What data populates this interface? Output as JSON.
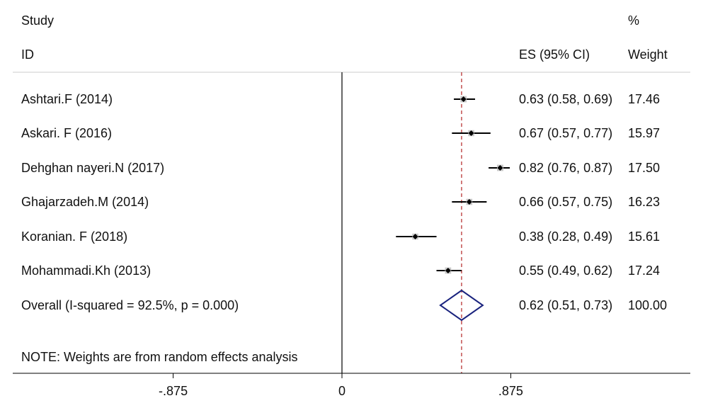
{
  "header": {
    "study_label": "Study",
    "id_label": "ID",
    "es_label": "ES (95% CI)",
    "pct_label": "%",
    "weight_label": "Weight"
  },
  "note": "NOTE: Weights are from random effects analysis",
  "chart_data": {
    "type": "forest",
    "x_ticks": [
      {
        "value": -0.875,
        "label": "-.875"
      },
      {
        "value": 0,
        "label": "0"
      },
      {
        "value": 0.875,
        "label": ".875"
      }
    ],
    "xlim": [
      -1.75,
      1.75
    ],
    "null_line": 0,
    "overall_line": 0.62,
    "studies": [
      {
        "label": "Ashtari.F (2014)",
        "es": 0.63,
        "lo": 0.58,
        "hi": 0.69,
        "es_text": "0.63 (0.58, 0.69)",
        "weight": "17.46"
      },
      {
        "label": "Askari. F (2016)",
        "es": 0.67,
        "lo": 0.57,
        "hi": 0.77,
        "es_text": "0.67 (0.57, 0.77)",
        "weight": "15.97"
      },
      {
        "label": "Dehghan nayeri.N (2017)",
        "es": 0.82,
        "lo": 0.76,
        "hi": 0.87,
        "es_text": "0.82 (0.76, 0.87)",
        "weight": "17.50"
      },
      {
        "label": "Ghajarzadeh.M (2014)",
        "es": 0.66,
        "lo": 0.57,
        "hi": 0.75,
        "es_text": "0.66 (0.57, 0.75)",
        "weight": "16.23"
      },
      {
        "label": "Koranian. F (2018)",
        "es": 0.38,
        "lo": 0.28,
        "hi": 0.49,
        "es_text": "0.38 (0.28, 0.49)",
        "weight": "15.61"
      },
      {
        "label": "Mohammadi.Kh (2013)",
        "es": 0.55,
        "lo": 0.49,
        "hi": 0.62,
        "es_text": "0.55 (0.49, 0.62)",
        "weight": "17.24"
      }
    ],
    "overall": {
      "label": "Overall  (I-squared = 92.5%, p = 0.000)",
      "es": 0.62,
      "lo": 0.51,
      "hi": 0.73,
      "es_text": "0.62 (0.51, 0.73)",
      "weight": "100.00"
    },
    "colors": {
      "ci": "#000000",
      "box": "#c8c8c8",
      "diamond": "#1a237e",
      "overall_line": "#b22222"
    }
  }
}
